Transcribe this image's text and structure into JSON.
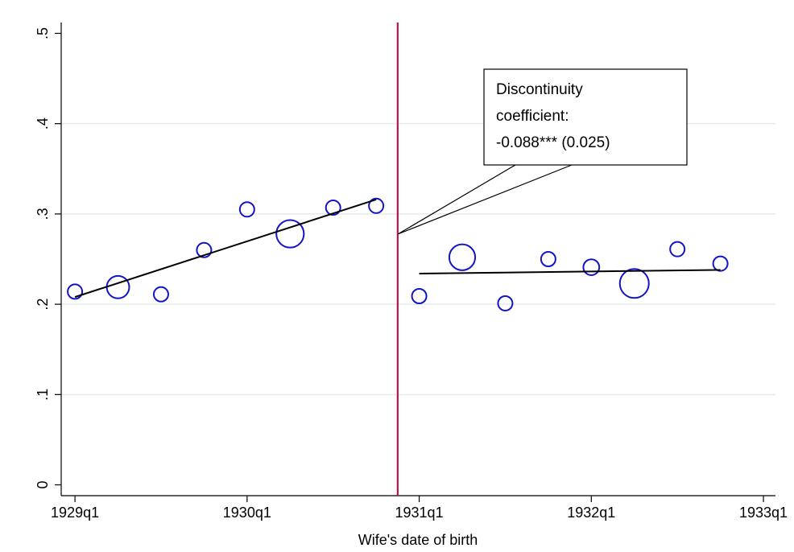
{
  "chart_data": {
    "type": "scatter",
    "x_label": "Wife's date of birth",
    "xlim": [
      1928.92,
      1933.07
    ],
    "ylim": [
      -0.012,
      0.512
    ],
    "xticks": [
      {
        "value": 1929,
        "label": "1929q1"
      },
      {
        "value": 1930,
        "label": "1930q1"
      },
      {
        "value": 1931,
        "label": "1931q1"
      },
      {
        "value": 1932,
        "label": "1932q1"
      },
      {
        "value": 1933,
        "label": "1933q1"
      }
    ],
    "yticks": [
      0,
      {
        "value": 0.1,
        "label": ".1"
      },
      {
        "value": 0.2,
        "label": ".2"
      },
      {
        "value": 0.3,
        "label": ".3"
      },
      {
        "value": 0.4,
        "label": ".4"
      },
      {
        "value": 0.5,
        "label": ".5"
      }
    ],
    "grid": true,
    "series": [
      {
        "type": "scatter",
        "color": "#1414c8",
        "x": [
          1929,
          1929.25,
          1929.5,
          1929.75,
          1930,
          1930.25,
          1930.5,
          1930.75,
          1931,
          1931.25,
          1931.5,
          1931.75,
          1932,
          1932.25,
          1932.5,
          1932.75
        ],
        "values": [
          0.214,
          0.219,
          0.211,
          0.26,
          0.305,
          0.278,
          0.307,
          0.309,
          0.209,
          0.252,
          0.201,
          0.25,
          0.241,
          0.223,
          0.261,
          0.245
        ],
        "sizes": [
          1,
          2.4,
          1,
          1,
          1,
          3.6,
          1,
          1,
          1,
          3.2,
          1,
          1,
          1.2,
          4,
          1,
          1
        ]
      },
      {
        "type": "line",
        "color": "#000000",
        "x": [
          1929,
          1930.75
        ],
        "values": [
          0.208,
          0.316
        ]
      },
      {
        "type": "line",
        "color": "#000000",
        "x": [
          1931,
          1932.75
        ],
        "values": [
          0.234,
          0.238
        ]
      }
    ],
    "reference_line": {
      "x": 1930.875,
      "color": "#b5174b"
    },
    "annotation": {
      "lines": [
        "Discontinuity",
        "coefficient:",
        "-0.088*** (0.025)"
      ]
    }
  }
}
